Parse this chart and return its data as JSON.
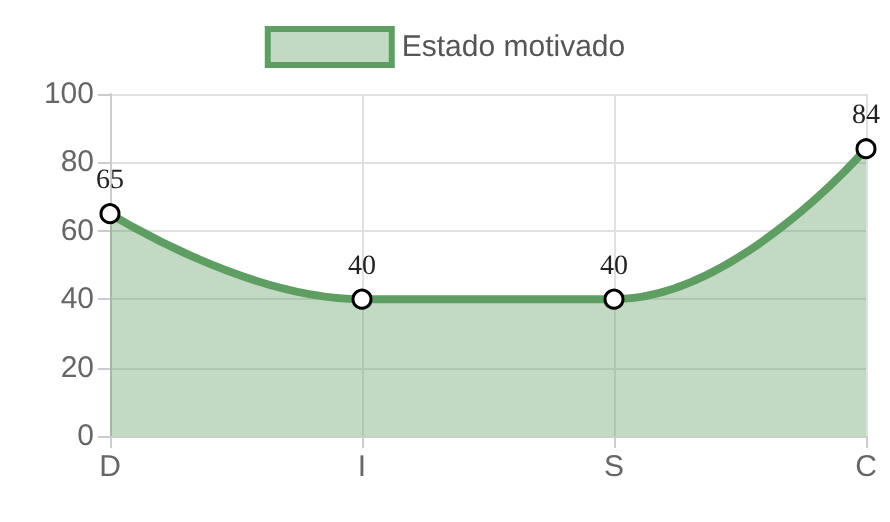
{
  "chart_data": {
    "type": "area",
    "categories": [
      "D",
      "I",
      "S",
      "C"
    ],
    "series": [
      {
        "name": "Estado motivado",
        "color": "#5e9e62",
        "values": [
          65,
          40,
          40,
          84
        ]
      }
    ],
    "ylim": [
      0,
      100
    ],
    "yticks": [
      0,
      20,
      40,
      60,
      80,
      100
    ],
    "grid": true,
    "legend": "top",
    "marker": "circle",
    "line_style": "solid",
    "data_labels": true
  }
}
